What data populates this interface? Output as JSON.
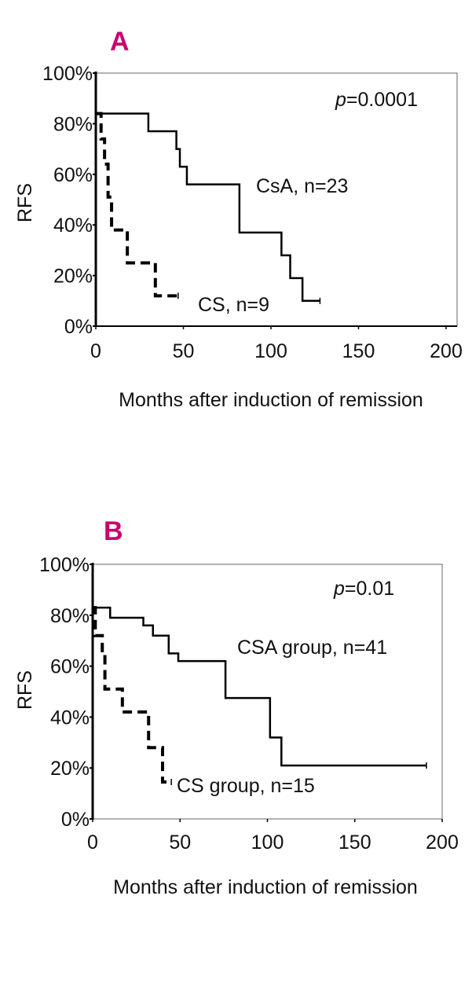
{
  "panel_color": "#c8006e",
  "chart_data": [
    {
      "type": "line",
      "panel_label": "A",
      "title": "",
      "xlabel": "Months after induction of remission",
      "ylabel": "RFS",
      "xlim": [
        0,
        200
      ],
      "ylim": [
        0,
        100
      ],
      "xticks": [
        "0",
        "50",
        "100",
        "150",
        "200"
      ],
      "yticks": [
        "0%",
        "20%",
        "40%",
        "60%",
        "80%",
        "100%"
      ],
      "annotation_p": "p",
      "annotation_value": "=0.0001",
      "series": [
        {
          "name": "CsA, n=23",
          "style": "solid",
          "steps": [
            [
              0,
              84
            ],
            [
              30,
              77
            ],
            [
              46,
              70
            ],
            [
              48,
              63
            ],
            [
              52,
              56
            ],
            [
              82,
              37
            ],
            [
              106,
              28
            ],
            [
              111,
              19
            ],
            [
              118,
              10
            ],
            [
              128,
              10
            ]
          ]
        },
        {
          "name": "CS, n=9",
          "style": "dashed",
          "steps": [
            [
              0,
              84
            ],
            [
              3,
              74
            ],
            [
              5,
              64
            ],
            [
              7,
              51
            ],
            [
              9,
              38
            ],
            [
              18,
              25
            ],
            [
              34,
              12
            ],
            [
              47,
              12
            ]
          ]
        }
      ]
    },
    {
      "type": "line",
      "panel_label": "B",
      "title": "",
      "xlabel": "Months after induction of remission",
      "ylabel": "RFS",
      "xlim": [
        0,
        200
      ],
      "ylim": [
        0,
        100
      ],
      "xticks": [
        "0",
        "50",
        "100",
        "150",
        "200"
      ],
      "yticks": [
        "0%",
        "20%",
        "40%",
        "60%",
        "80%",
        "100%"
      ],
      "annotation_p": "p",
      "annotation_value": "=0.01",
      "series": [
        {
          "name": "CSA group, n=41",
          "style": "solid",
          "steps": [
            [
              0,
              83
            ],
            [
              10,
              79
            ],
            [
              29,
              76
            ],
            [
              34.5,
              72
            ],
            [
              43.5,
              65
            ],
            [
              49,
              62
            ],
            [
              76,
              47.5
            ],
            [
              101.5,
              32
            ],
            [
              108,
              21
            ],
            [
              191,
              21
            ]
          ]
        },
        {
          "name": "CS group, n=15",
          "style": "dashed",
          "steps": [
            [
              0,
              83
            ],
            [
              1.5,
              72
            ],
            [
              5.5,
              65
            ],
            [
              7,
              51
            ],
            [
              17,
              42
            ],
            [
              32,
              28
            ],
            [
              40,
              14.5
            ],
            [
              45,
              14.5
            ]
          ]
        }
      ]
    }
  ]
}
